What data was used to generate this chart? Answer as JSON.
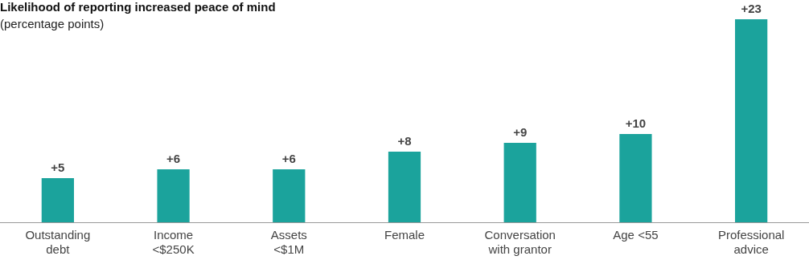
{
  "chart_data": {
    "type": "bar",
    "title": "Likelihood of reporting increased peace of mind",
    "subtitle": "(percentage points)",
    "categories": [
      "Outstanding\ndebt",
      "Income\n<$250K",
      "Assets\n<$1M",
      "Female",
      "Conversation\nwith grantor",
      "Age <55",
      "Professional\nadvice"
    ],
    "values": [
      5,
      6,
      6,
      8,
      9,
      10,
      23
    ],
    "value_labels": [
      "+5",
      "+6",
      "+6",
      "+8",
      "+9",
      "+10",
      "+23"
    ],
    "color": "#1ba39c"
  }
}
